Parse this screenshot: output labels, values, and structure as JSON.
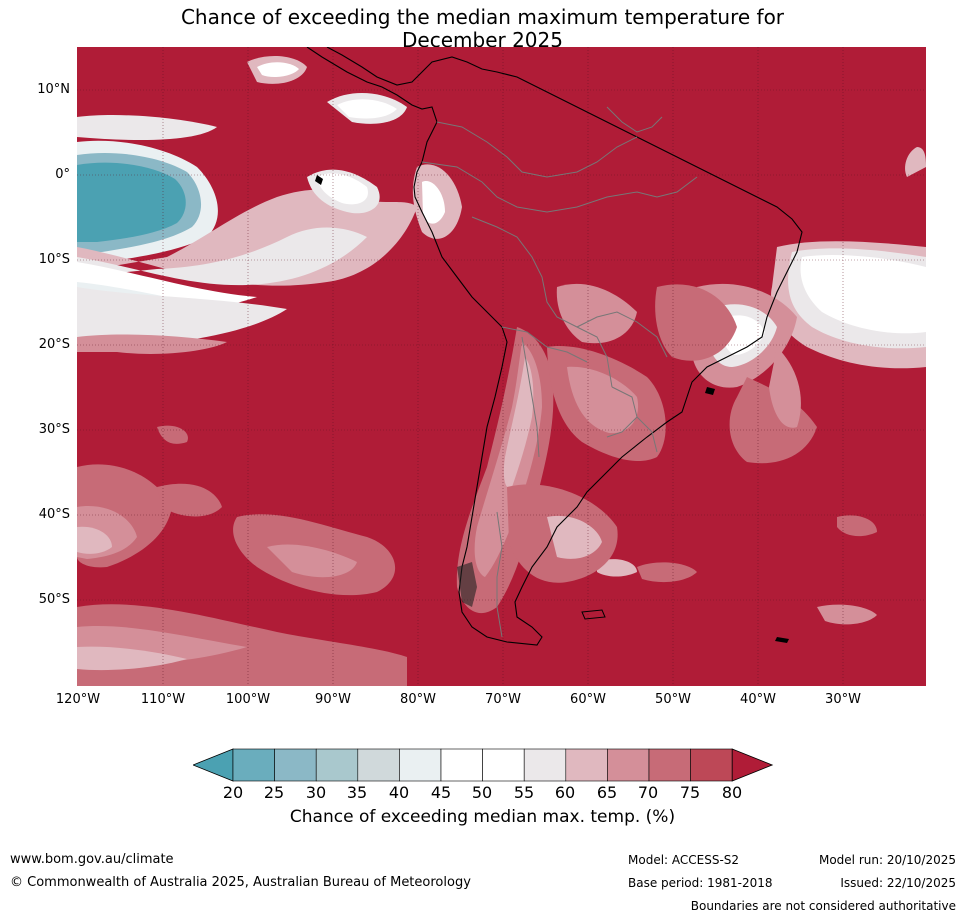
{
  "title": {
    "line1": "Chance of exceeding the median maximum temperature for",
    "line2": "December 2025"
  },
  "lat_labels": [
    "10°N",
    "0°",
    "10°S",
    "20°S",
    "30°S",
    "40°S",
    "50°S"
  ],
  "lon_labels": [
    "120°W",
    "110°W",
    "100°W",
    "90°W",
    "80°W",
    "70°W",
    "60°W",
    "50°W",
    "40°W",
    "30°W"
  ],
  "colorbar": {
    "ticks": [
      "20",
      "25",
      "30",
      "35",
      "40",
      "45",
      "50",
      "55",
      "60",
      "65",
      "70",
      "75",
      "80"
    ],
    "colors": [
      "#4ba1b2",
      "#6aadbd",
      "#8bb8c6",
      "#a9c8cd",
      "#d0d9db",
      "#eaf0f2",
      "#ffffff",
      "#ffffff",
      "#ebe8ea",
      "#e0b8bf",
      "#d48f99",
      "#c76b77",
      "#bd4857",
      "#b01c37"
    ],
    "label": "Chance of exceeding median max. temp. (%)"
  },
  "footer": {
    "url": "www.bom.gov.au/climate",
    "copyright": "© Commonwealth of Australia 2025, Australian Bureau of Meteorology",
    "model": "Model: ACCESS-S2",
    "base_period": "Base period: 1981-2018",
    "model_run": "Model run: 20/10/2025",
    "issued": "Issued: 22/10/2025",
    "disclaimer": "Boundaries are not considered authoritative"
  }
}
